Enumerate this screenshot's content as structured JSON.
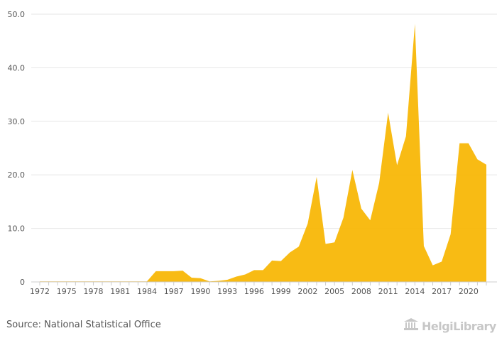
{
  "chart_data": {
    "type": "area",
    "x": [
      1972,
      1973,
      1974,
      1975,
      1976,
      1977,
      1978,
      1979,
      1980,
      1981,
      1982,
      1983,
      1984,
      1985,
      1986,
      1987,
      1988,
      1989,
      1990,
      1991,
      1992,
      1993,
      1994,
      1995,
      1996,
      1997,
      1998,
      1999,
      2000,
      2001,
      2002,
      2003,
      2004,
      2005,
      2006,
      2007,
      2008,
      2009,
      2010,
      2011,
      2012,
      2013,
      2014,
      2015,
      2016,
      2017,
      2018,
      2019,
      2020,
      2021,
      2022
    ],
    "values": [
      0.1,
      0.1,
      0.1,
      0.1,
      0.1,
      0.1,
      0.1,
      0.1,
      0.1,
      0.1,
      0.1,
      0.1,
      0.1,
      2.0,
      2.0,
      2.0,
      2.1,
      0.8,
      0.7,
      0.1,
      0.2,
      0.4,
      1.0,
      1.4,
      2.2,
      2.2,
      4.0,
      3.9,
      5.5,
      6.6,
      10.9,
      19.6,
      7.1,
      7.4,
      12.0,
      20.9,
      13.7,
      11.5,
      18.5,
      31.6,
      21.8,
      27.2,
      48.2,
      6.7,
      3.1,
      3.8,
      8.9,
      25.9,
      25.9,
      22.9,
      21.9
    ],
    "x_tick_labels": [
      "1972",
      "1975",
      "1978",
      "1981",
      "1984",
      "1987",
      "1990",
      "1993",
      "1996",
      "1999",
      "2002",
      "2005",
      "2008",
      "2011",
      "2014",
      "2017",
      "2020"
    ],
    "y_tick_labels": [
      "0",
      "10.0",
      "20.0",
      "30.0",
      "40.0",
      "50.0"
    ],
    "ylim": [
      0,
      50
    ],
    "grid": true,
    "color": "#F7B500",
    "title": "",
    "xlabel": "",
    "ylabel": ""
  },
  "footer": {
    "source": "Source: National Statistical Office",
    "logo_text": "HelgiLibrary"
  },
  "colors": {
    "area_fill": "#F7B500",
    "grid": "#e6e6e6",
    "axis_text": "#555555",
    "logo": "#c7c7c7"
  }
}
